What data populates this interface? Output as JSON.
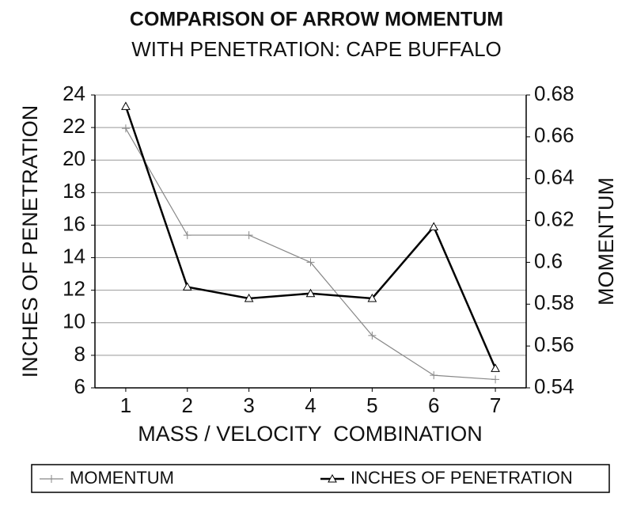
{
  "chart_data": {
    "type": "line",
    "title": "COMPARISON OF ARROW MOMENTUM",
    "subtitle": "WITH PENETRATION: CAPE BUFFALO",
    "x_label": "MASS / VELOCITY  COMBINATION",
    "y_label": "INCHES OF PENETRATION",
    "y2_label": "MOMENTUM",
    "categories": [
      "1",
      "2",
      "3",
      "4",
      "5",
      "6",
      "7"
    ],
    "series": [
      {
        "name": "MOMENTUM",
        "color": "#888888",
        "marker": "plus",
        "axis": "y2",
        "values": [
          0.664,
          0.613,
          0.613,
          0.6,
          0.565,
          0.546,
          0.544
        ]
      },
      {
        "name": "INCHES OF PENETRATION",
        "color": "#000000",
        "marker": "triangle",
        "values": [
          23.3,
          12.2,
          11.5,
          11.8,
          11.5,
          15.9,
          7.2
        ]
      }
    ],
    "ylim": [
      6,
      24
    ],
    "yticks": [
      6,
      8,
      10,
      12,
      14,
      16,
      18,
      20,
      22,
      24
    ],
    "y2lim": [
      0.54,
      0.68
    ],
    "y2ticks": [
      0.54,
      0.56,
      0.58,
      0.6,
      0.62,
      0.64,
      0.66,
      0.68
    ],
    "grid": true,
    "legend": "bottom"
  }
}
